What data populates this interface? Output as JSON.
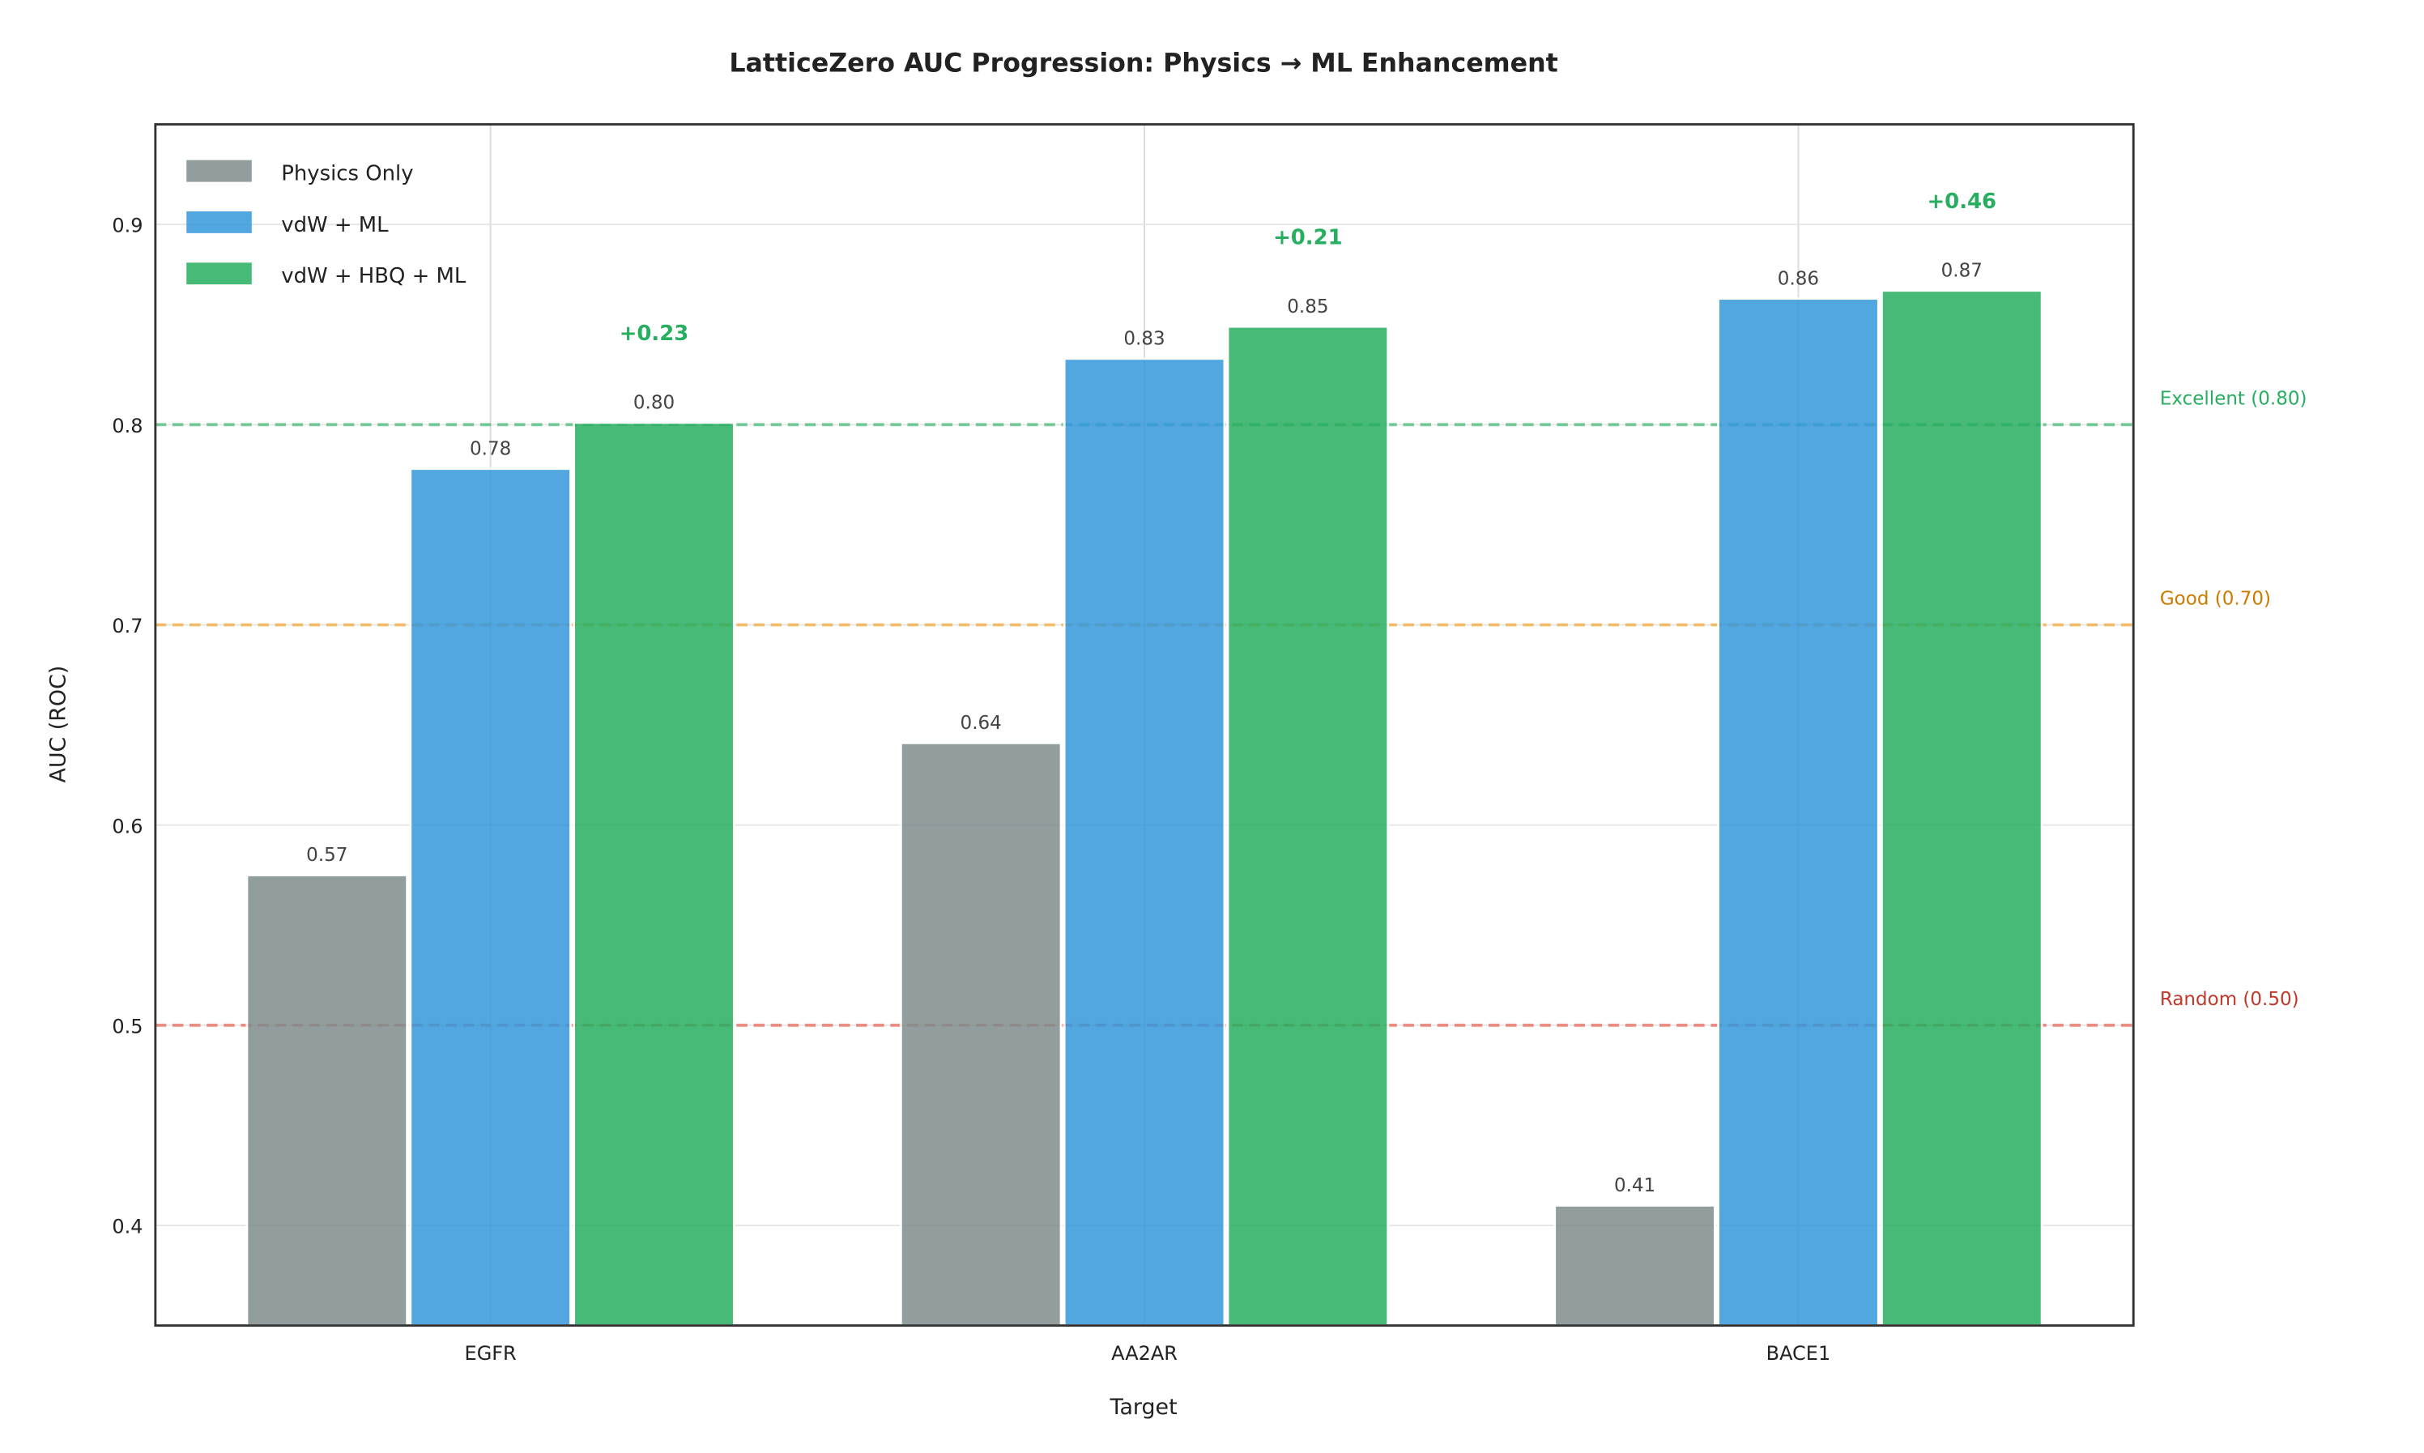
{
  "chart_data": {
    "type": "bar",
    "title": "LatticeZero AUC Progression: Physics → ML Enhancement",
    "xlabel": "Target",
    "ylabel": "AUC (ROC)",
    "ylim": [
      0.35,
      0.95
    ],
    "yticks": [
      "0.4",
      "0.5",
      "0.6",
      "0.7",
      "0.8",
      "0.9"
    ],
    "grid": true,
    "legend_position": "top-left",
    "categories": [
      "EGFR",
      "AA2AR",
      "BACE1"
    ],
    "series": [
      {
        "name": "Physics Only",
        "color": "#7f8c8d",
        "values": [
          0.575,
          0.641,
          0.41
        ],
        "labels": [
          "0.57",
          "0.64",
          "0.41"
        ]
      },
      {
        "name": "vdW + ML",
        "color": "#3498db",
        "values": [
          0.778,
          0.833,
          0.863
        ],
        "labels": [
          "0.78",
          "0.83",
          "0.86"
        ]
      },
      {
        "name": "vdW + HBQ + ML",
        "color": "#27ae60",
        "values": [
          0.801,
          0.849,
          0.867
        ],
        "labels": [
          "0.80",
          "0.85",
          "0.87"
        ]
      }
    ],
    "improvements": [
      "+0.23",
      "+0.21",
      "+0.46"
    ],
    "improvement_color": "#27ae60",
    "reference_lines": [
      {
        "value": 0.8,
        "label": "Excellent (0.80)",
        "line_color": "#27ae60",
        "text_color": "#27ae60"
      },
      {
        "value": 0.7,
        "label": "Good (0.70)",
        "line_color": "#f39c12",
        "text_color": "#cc7a00"
      },
      {
        "value": 0.5,
        "label": "Random (0.50)",
        "line_color": "#e74c3c",
        "text_color": "#c0392b"
      }
    ]
  }
}
